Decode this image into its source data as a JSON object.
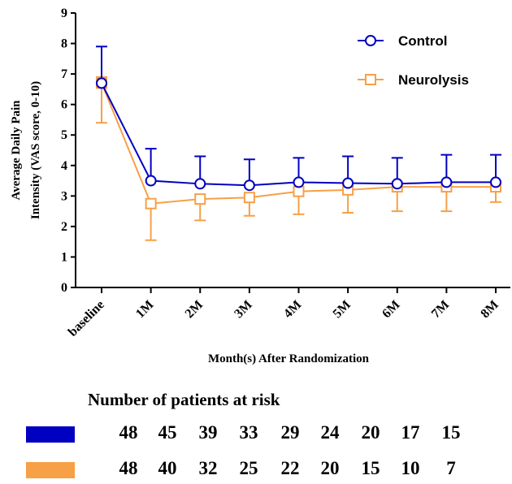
{
  "chart_data": {
    "type": "line",
    "categories": [
      "baseline",
      "1M",
      "2M",
      "3M",
      "4M",
      "5M",
      "6M",
      "7M",
      "8M"
    ],
    "ylabel_line1": "Average Daily Pain",
    "ylabel_line2": "Intensity  (VAS score, 0-10)",
    "xlabel": "Month(s) After Randomization",
    "ylim": [
      0,
      9
    ],
    "yticks": [
      "0",
      "1",
      "2",
      "3",
      "4",
      "5",
      "6",
      "7",
      "8",
      "9"
    ],
    "legend_position": "top-right",
    "series": [
      {
        "name": "Control",
        "color": "#0000c0",
        "marker": "circle",
        "values": [
          6.7,
          3.5,
          3.4,
          3.35,
          3.45,
          3.42,
          3.4,
          3.45,
          3.45
        ],
        "error_upper": [
          7.9,
          4.55,
          4.3,
          4.2,
          4.25,
          4.3,
          4.25,
          4.35,
          4.35
        ],
        "error_lower": [
          6.7,
          3.5,
          3.4,
          3.35,
          3.45,
          3.42,
          3.4,
          3.45,
          3.45
        ]
      },
      {
        "name": "Neurolysis",
        "color": "#f7a046",
        "marker": "square",
        "values": [
          6.7,
          2.75,
          2.9,
          2.95,
          3.15,
          3.2,
          3.3,
          3.3,
          3.3
        ],
        "error_upper": [
          6.9,
          2.75,
          2.9,
          2.95,
          3.15,
          3.2,
          3.3,
          3.3,
          3.3
        ],
        "error_lower": [
          5.4,
          1.55,
          2.2,
          2.35,
          2.4,
          2.45,
          2.5,
          2.5,
          2.8
        ]
      }
    ]
  },
  "risk_table": {
    "title": "Number of patients at risk",
    "rows": [
      {
        "color": "#0000c0",
        "values": [
          "48",
          "45",
          "39",
          "33",
          "29",
          "24",
          "20",
          "17",
          "15"
        ]
      },
      {
        "color": "#f7a046",
        "values": [
          "48",
          "40",
          "32",
          "25",
          "22",
          "20",
          "15",
          "10",
          "7"
        ]
      }
    ]
  }
}
